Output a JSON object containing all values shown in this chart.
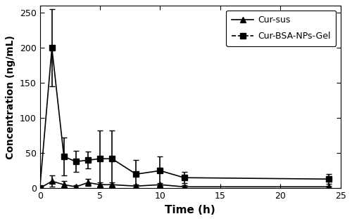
{
  "time_points": [
    0,
    1,
    2,
    3,
    4,
    5,
    6,
    8,
    10,
    12,
    24
  ],
  "cur_sus_mean": [
    0,
    10,
    5,
    2,
    8,
    5,
    5,
    3,
    5,
    2,
    2
  ],
  "cur_sus_err": [
    0,
    8,
    5,
    2,
    5,
    3,
    3,
    2,
    2,
    2,
    1
  ],
  "cur_bsa_mean": [
    0,
    200,
    45,
    38,
    40,
    42,
    42,
    20,
    25,
    15,
    13
  ],
  "cur_bsa_err": [
    0,
    55,
    27,
    15,
    12,
    40,
    40,
    20,
    20,
    8,
    7
  ],
  "xlabel": "Time (h)",
  "ylabel": "Concentration (ng/mL)",
  "xlim": [
    0,
    25
  ],
  "ylim": [
    0,
    260
  ],
  "yticks": [
    0,
    50,
    100,
    150,
    200,
    250
  ],
  "xticks": [
    0,
    5,
    10,
    15,
    20,
    25
  ],
  "label_sus": "Cur-sus",
  "label_bsa": "Cur-BSA-NPs-Gel",
  "line_color": "#000000",
  "bg_color": "#ffffff",
  "marker_sus": "^",
  "marker_bsa": "s"
}
